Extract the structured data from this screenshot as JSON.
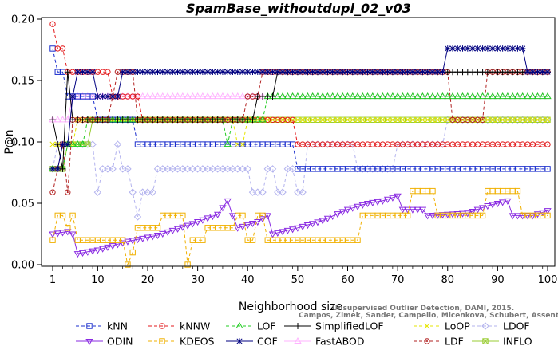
{
  "chart_data": {
    "type": "line",
    "title": "SpamBase_withoutdupl_02_v03",
    "xlabel": "Neighborhood size",
    "ylabel": "P@n",
    "xlim": [
      1,
      100
    ],
    "ylim": [
      0.0,
      0.2
    ],
    "xticks": [
      1,
      10,
      20,
      30,
      40,
      50,
      60,
      70,
      80,
      90,
      100
    ],
    "yticks": [
      "0.00",
      "0.05",
      "0.10",
      "0.15",
      "0.20"
    ],
    "credit": [
      "Campos, Zimek, Sander, Campello, Micenkova, Schubert, Assent, Houle",
      "Unsupervised Outlier Detection, DAMI, 2015."
    ],
    "legend_placement": "bottom",
    "series": [
      {
        "name": "kNN",
        "color": "#1a2dcc",
        "marker": "square",
        "dash": "4,3",
        "points": [
          [
            1,
            0.176
          ],
          [
            2,
            0.157
          ],
          [
            3,
            0.157
          ],
          [
            4,
            0.137
          ],
          [
            5,
            0.137
          ],
          [
            9,
            0.137
          ],
          [
            10,
            0.118
          ],
          [
            17,
            0.118
          ],
          [
            18,
            0.098
          ],
          [
            49,
            0.098
          ],
          [
            50,
            0.078
          ],
          [
            100,
            0.078
          ]
        ]
      },
      {
        "name": "kNNW",
        "color": "#e31a1c",
        "marker": "circle",
        "dash": "4,3",
        "points": [
          [
            1,
            0.196
          ],
          [
            2,
            0.176
          ],
          [
            3,
            0.176
          ],
          [
            4,
            0.157
          ],
          [
            12,
            0.157
          ],
          [
            13,
            0.137
          ],
          [
            18,
            0.137
          ],
          [
            19,
            0.118
          ],
          [
            49,
            0.118
          ],
          [
            50,
            0.098
          ],
          [
            100,
            0.098
          ]
        ]
      },
      {
        "name": "LOF",
        "color": "#22cc22",
        "marker": "triangle",
        "dash": "4,3",
        "points": [
          [
            1,
            0.078
          ],
          [
            3,
            0.078
          ],
          [
            4,
            0.098
          ],
          [
            7,
            0.098
          ],
          [
            8,
            0.118
          ],
          [
            35,
            0.118
          ],
          [
            36,
            0.098
          ],
          [
            37,
            0.118
          ],
          [
            43,
            0.118
          ],
          [
            44,
            0.137
          ],
          [
            100,
            0.137
          ]
        ]
      },
      {
        "name": "SimplifiedLOF",
        "color": "#000000",
        "marker": "plus",
        "dash": "",
        "points": [
          [
            1,
            0.118
          ],
          [
            2,
            0.098
          ],
          [
            3,
            0.078
          ],
          [
            4,
            0.157
          ],
          [
            5,
            0.118
          ],
          [
            41,
            0.118
          ],
          [
            42,
            0.137
          ],
          [
            45,
            0.137
          ],
          [
            46,
            0.157
          ],
          [
            100,
            0.157
          ]
        ]
      },
      {
        "name": "LoOP",
        "color": "#e6e600",
        "marker": "x",
        "dash": "4,3",
        "points": [
          [
            1,
            0.098
          ],
          [
            5,
            0.098
          ],
          [
            6,
            0.118
          ],
          [
            37,
            0.118
          ],
          [
            38,
            0.098
          ],
          [
            40,
            0.118
          ],
          [
            52,
            0.118
          ],
          [
            66,
            0.118
          ],
          [
            72,
            0.118
          ],
          [
            100,
            0.118
          ]
        ]
      },
      {
        "name": "LDOF",
        "color": "#b3b3ee",
        "marker": "diamond",
        "dash": "4,3",
        "points": [
          [
            1,
            0.078
          ],
          [
            2,
            0.098
          ],
          [
            5,
            0.098
          ],
          [
            10,
            0.059
          ],
          [
            11,
            0.078
          ],
          [
            14,
            0.098
          ],
          [
            15,
            0.078
          ],
          [
            17,
            0.059
          ],
          [
            18,
            0.039
          ],
          [
            19,
            0.059
          ],
          [
            22,
            0.078
          ],
          [
            40,
            0.078
          ],
          [
            41,
            0.059
          ],
          [
            44,
            0.078
          ],
          [
            46,
            0.059
          ],
          [
            48,
            0.078
          ],
          [
            50,
            0.059
          ],
          [
            52,
            0.098
          ],
          [
            60,
            0.098
          ],
          [
            62,
            0.078
          ],
          [
            70,
            0.098
          ],
          [
            80,
            0.118
          ],
          [
            100,
            0.118
          ]
        ]
      },
      {
        "name": "ODIN",
        "color": "#8a2be2",
        "marker": "triangle-down",
        "dash": "",
        "points": [
          [
            1,
            0.025
          ],
          [
            4,
            0.027
          ],
          [
            5,
            0.025
          ],
          [
            6,
            0.009
          ],
          [
            10,
            0.012
          ],
          [
            16,
            0.019
          ],
          [
            22,
            0.024
          ],
          [
            28,
            0.032
          ],
          [
            34,
            0.041
          ],
          [
            36,
            0.052
          ],
          [
            37,
            0.04
          ],
          [
            38,
            0.03
          ],
          [
            42,
            0.035
          ],
          [
            44,
            0.04
          ],
          [
            45,
            0.025
          ],
          [
            50,
            0.03
          ],
          [
            55,
            0.036
          ],
          [
            60,
            0.045
          ],
          [
            64,
            0.05
          ],
          [
            67,
            0.052
          ],
          [
            70,
            0.056
          ],
          [
            71,
            0.045
          ],
          [
            75,
            0.045
          ],
          [
            76,
            0.04
          ],
          [
            84,
            0.042
          ],
          [
            88,
            0.048
          ],
          [
            92,
            0.052
          ],
          [
            93,
            0.04
          ],
          [
            97,
            0.04
          ],
          [
            100,
            0.044
          ]
        ]
      },
      {
        "name": "KDEOS",
        "color": "#f0b000",
        "marker": "square",
        "dash": "4,3",
        "points": [
          [
            1,
            0.02
          ],
          [
            2,
            0.04
          ],
          [
            3,
            0.04
          ],
          [
            4,
            0.03
          ],
          [
            5,
            0.04
          ],
          [
            6,
            0.02
          ],
          [
            15,
            0.02
          ],
          [
            16,
            0.0
          ],
          [
            17,
            0.01
          ],
          [
            18,
            0.03
          ],
          [
            23,
            0.04
          ],
          [
            27,
            0.04
          ],
          [
            28,
            0.0
          ],
          [
            29,
            0.02
          ],
          [
            32,
            0.03
          ],
          [
            36,
            0.03
          ],
          [
            38,
            0.04
          ],
          [
            40,
            0.02
          ],
          [
            42,
            0.04
          ],
          [
            44,
            0.02
          ],
          [
            62,
            0.02
          ],
          [
            63,
            0.04
          ],
          [
            70,
            0.04
          ],
          [
            73,
            0.06
          ],
          [
            77,
            0.06
          ],
          [
            78,
            0.04
          ],
          [
            88,
            0.06
          ],
          [
            94,
            0.06
          ],
          [
            95,
            0.04
          ],
          [
            100,
            0.04
          ]
        ]
      },
      {
        "name": "COF",
        "color": "#000080",
        "marker": "star",
        "dash": "",
        "points": [
          [
            1,
            0.078
          ],
          [
            2,
            0.078
          ],
          [
            3,
            0.098
          ],
          [
            5,
            0.137
          ],
          [
            6,
            0.157
          ],
          [
            9,
            0.157
          ],
          [
            10,
            0.137
          ],
          [
            14,
            0.137
          ],
          [
            15,
            0.157
          ],
          [
            79,
            0.157
          ],
          [
            80,
            0.176
          ],
          [
            95,
            0.176
          ],
          [
            96,
            0.157
          ],
          [
            100,
            0.157
          ]
        ]
      },
      {
        "name": "FastABOD",
        "color": "#ffb3ff",
        "marker": "triangle",
        "dash": "",
        "points": [
          [
            1,
            0.118
          ],
          [
            4,
            0.118
          ],
          [
            5,
            0.137
          ],
          [
            100,
            0.137
          ]
        ]
      },
      {
        "name": "LDF",
        "color": "#b22222",
        "marker": "circle-dot",
        "dash": "4,3",
        "points": [
          [
            1,
            0.059
          ],
          [
            2,
            0.078
          ],
          [
            3,
            0.098
          ],
          [
            4,
            0.059
          ],
          [
            5,
            0.118
          ],
          [
            12,
            0.118
          ],
          [
            13,
            0.137
          ],
          [
            14,
            0.157
          ],
          [
            16,
            0.157
          ],
          [
            18,
            0.118
          ],
          [
            36,
            0.118
          ],
          [
            40,
            0.137
          ],
          [
            42,
            0.137
          ],
          [
            43,
            0.157
          ],
          [
            80,
            0.157
          ],
          [
            81,
            0.118
          ],
          [
            87,
            0.118
          ],
          [
            88,
            0.157
          ],
          [
            100,
            0.157
          ]
        ]
      },
      {
        "name": "INFLO",
        "color": "#99cc33",
        "marker": "boxx",
        "dash": "",
        "points": [
          [
            1,
            0.078
          ],
          [
            3,
            0.078
          ],
          [
            4,
            0.098
          ],
          [
            8,
            0.098
          ],
          [
            9,
            0.118
          ],
          [
            100,
            0.118
          ]
        ]
      }
    ]
  }
}
